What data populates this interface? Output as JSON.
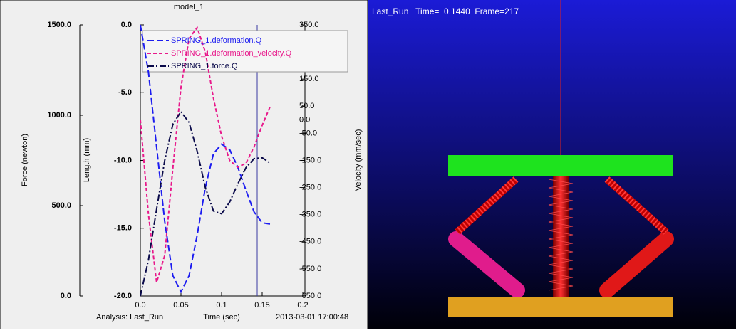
{
  "chart_data": {
    "type": "line",
    "title": "model_1",
    "x_label": "Time (sec)",
    "y_label": "Length (mm)",
    "y2_label": "Velocity (mm/sec)",
    "y3_label": "Force (newton)",
    "footer_left": "Analysis:  Last_Run",
    "footer_right": "2013-03-01 17:00:48",
    "x": [
      0,
      0.01,
      0.02,
      0.03,
      0.04,
      0.05,
      0.06,
      0.07,
      0.08,
      0.09,
      0.1,
      0.11,
      0.12,
      0.13,
      0.14,
      0.15,
      0.16
    ],
    "xlim": [
      0,
      0.2
    ],
    "xticks": [
      {
        "value": 0,
        "label": "0.0"
      },
      0.05,
      0.1,
      0.15,
      0.2
    ],
    "ylim": [
      -20,
      0
    ],
    "yticks": [
      {
        "value": 0,
        "label": "0.0"
      },
      {
        "value": -5,
        "label": "-5.0"
      },
      {
        "value": -10,
        "label": "-10.0"
      },
      {
        "value": -15,
        "label": "-15.0"
      },
      {
        "value": -20,
        "label": "-20.0"
      }
    ],
    "y2lim": [
      -650,
      350
    ],
    "y2ticks": [
      {
        "value": 350,
        "label": "350.0"
      },
      {
        "value": 150,
        "label": "150.0"
      },
      {
        "value": 50,
        "label": "50.0"
      },
      {
        "value": 0,
        "label": "0.0"
      },
      {
        "value": -50,
        "label": "-50.0"
      },
      {
        "value": -150,
        "label": "-150.0"
      },
      {
        "value": -250,
        "label": "-250.0"
      },
      {
        "value": -350,
        "label": "-350.0"
      },
      {
        "value": -450,
        "label": "-450.0"
      },
      {
        "value": -550,
        "label": "-550.0"
      },
      {
        "value": -650,
        "label": "-650.0"
      }
    ],
    "y3lim": [
      0,
      1500
    ],
    "y3ticks": [
      {
        "value": 0,
        "label": "0.0"
      },
      {
        "value": 500,
        "label": "500.0"
      },
      {
        "value": 1000,
        "label": "1000.0"
      },
      {
        "value": 1500,
        "label": "1500.0"
      }
    ],
    "series": [
      {
        "name": "SPRING_1.deformation.Q",
        "color": "#1c1cf0",
        "axis": "y",
        "dash": "9 4",
        "values": [
          0,
          -3.5,
          -9,
          -14.5,
          -18.5,
          -19.7,
          -18.5,
          -15.5,
          -12,
          -9.5,
          -8.8,
          -9.2,
          -10.5,
          -12.2,
          -13.8,
          -14.6,
          -14.7
        ]
      },
      {
        "name": "SPRING_1.deformation_velocity.Q",
        "color": "#e8198b",
        "axis": "y2",
        "dash": "5 3",
        "values": [
          0,
          -350,
          -600,
          -500,
          -180,
          120,
          300,
          340,
          250,
          80,
          -60,
          -150,
          -175,
          -160,
          -100,
          -20,
          50
        ]
      },
      {
        "name": "SPRING_1.force.Q",
        "color": "#0a0a4a",
        "axis": "y3",
        "dash": "9 3 2 3",
        "values": [
          0,
          200,
          480,
          750,
          950,
          1020,
          960,
          800,
          600,
          470,
          455,
          520,
          620,
          710,
          760,
          765,
          735
        ]
      }
    ]
  },
  "viewport": {
    "status": "Last_Run   Time=  0.1440  Frame=217"
  }
}
